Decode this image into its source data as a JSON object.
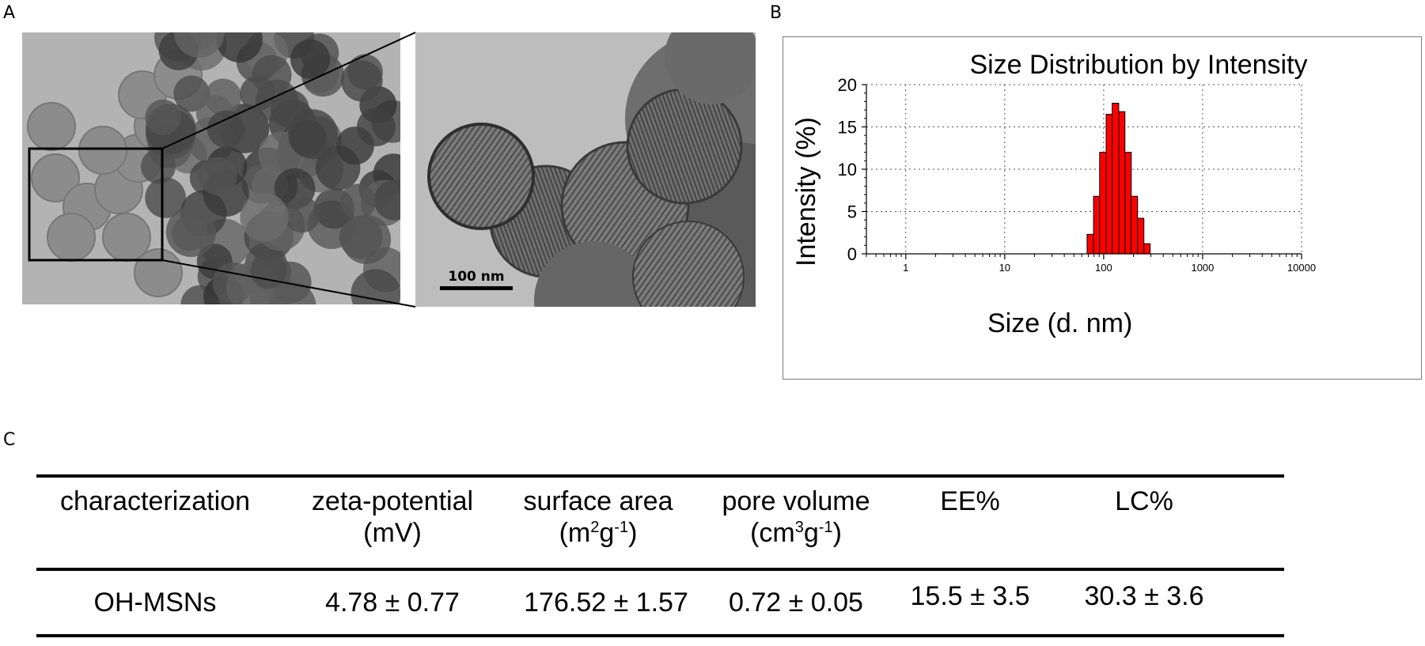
{
  "panels": {
    "a": "A",
    "b": "B",
    "c": "C"
  },
  "micrograph": {
    "scale_bar_label": "100 nm"
  },
  "chart_data": {
    "type": "bar",
    "title": "Size Distribution by Intensity",
    "xlabel": "Size (d. nm)",
    "ylabel": "Intensity (%)",
    "x_scale": "log",
    "xlim": [
      0.4,
      10000
    ],
    "ylim": [
      0,
      20
    ],
    "x_tick_labels": [
      "1",
      "10",
      "100",
      "1000",
      "10000"
    ],
    "x_ticks": [
      1,
      10,
      100,
      1000,
      10000
    ],
    "y_ticks": [
      0,
      5,
      10,
      15,
      20
    ],
    "grid": true,
    "bar_color": "#ff0000",
    "bins": [
      {
        "x0": 68,
        "x1": 79,
        "value": 2.3
      },
      {
        "x0": 79,
        "x1": 91,
        "value": 6.8
      },
      {
        "x0": 91,
        "x1": 106,
        "value": 12.0
      },
      {
        "x0": 106,
        "x1": 122,
        "value": 16.5
      },
      {
        "x0": 122,
        "x1": 142,
        "value": 17.8
      },
      {
        "x0": 142,
        "x1": 164,
        "value": 16.8
      },
      {
        "x0": 164,
        "x1": 190,
        "value": 12.0
      },
      {
        "x0": 190,
        "x1": 220,
        "value": 6.8
      },
      {
        "x0": 220,
        "x1": 255,
        "value": 4.2
      },
      {
        "x0": 255,
        "x1": 295,
        "value": 1.2
      }
    ]
  },
  "table": {
    "headers": [
      {
        "line1": "characterization",
        "line2": ""
      },
      {
        "line1": "zeta-potential",
        "line2": "(mV)"
      },
      {
        "line1": "surface area",
        "line2_base1": "(m",
        "line2_sup1": "2",
        "line2_base2": "g",
        "line2_sup2": "-1",
        "line2_end": ")"
      },
      {
        "line1": "pore volume",
        "line2_base1": "(cm",
        "line2_sup1": "3",
        "line2_base2": "g",
        "line2_sup2": "-1",
        "line2_end": ")"
      },
      {
        "line1": "EE%",
        "line2": ""
      },
      {
        "line1": "LC%",
        "line2": ""
      }
    ],
    "row": [
      "OH-MSNs",
      "4.78 ± 0.77",
      "176.52 ± 1.57",
      "0.72 ± 0.05",
      "15.5 ± 3.5",
      "30.3 ± 3.6"
    ]
  }
}
